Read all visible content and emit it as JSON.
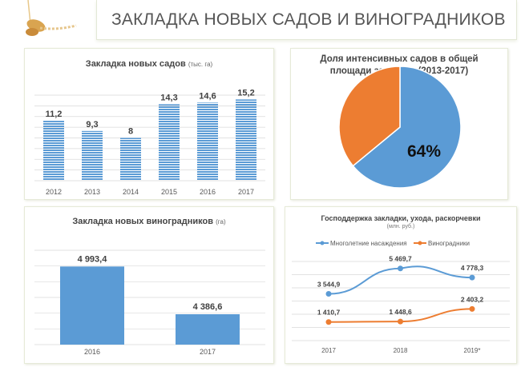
{
  "header": {
    "title": "ЗАКЛАДКА НОВЫХ САДОВ И ВИНОГРАДНИКОВ"
  },
  "colors": {
    "blue": "#5b9bd5",
    "orange": "#ed7d31",
    "grid": "#d9d9d9"
  },
  "chart_data": [
    {
      "type": "bar",
      "title": "Закладка новых садов",
      "unit": "(тыс. га)",
      "categories": [
        "2012",
        "2013",
        "2014",
        "2015",
        "2016",
        "2017"
      ],
      "values": [
        11.2,
        9.3,
        8,
        14.3,
        14.6,
        15.2
      ],
      "labels": [
        "11,2",
        "9,3",
        "8",
        "14,3",
        "14,6",
        "15,2"
      ],
      "ylim": [
        0,
        16
      ],
      "grid": true
    },
    {
      "type": "pie",
      "title_line1": "Доля интенсивных садов в общей",
      "title_line2": "площади закладки (2013-2017)",
      "values": [
        64,
        36
      ],
      "label": "64%"
    },
    {
      "type": "bar",
      "title": "Закладка новых виноградников",
      "unit": "(га)",
      "categories": [
        "2016",
        "2017"
      ],
      "values": [
        4993.4,
        4386.6
      ],
      "labels": [
        "4 993,4",
        "4 386,6"
      ],
      "ylim": [
        4000,
        5200
      ],
      "grid": true
    },
    {
      "type": "line",
      "title": "Господдержка закладки, ухода, раскорчевки",
      "unit": "(млн. руб.)",
      "categories": [
        "2017",
        "2018",
        "2019*"
      ],
      "ylim": [
        0,
        6000
      ],
      "grid": true,
      "legend": "top",
      "series": [
        {
          "name": "Многолетние насаждения",
          "values": [
            3544.9,
            5469.7,
            4778.3
          ],
          "labels": [
            "3 544,9",
            "5 469,7",
            "4 778,3"
          ]
        },
        {
          "name": "Виноградники",
          "values": [
            1410.7,
            1448.6,
            2403.2
          ],
          "labels": [
            "1 410,7",
            "1 448,6",
            "2 403,2"
          ]
        }
      ]
    }
  ]
}
